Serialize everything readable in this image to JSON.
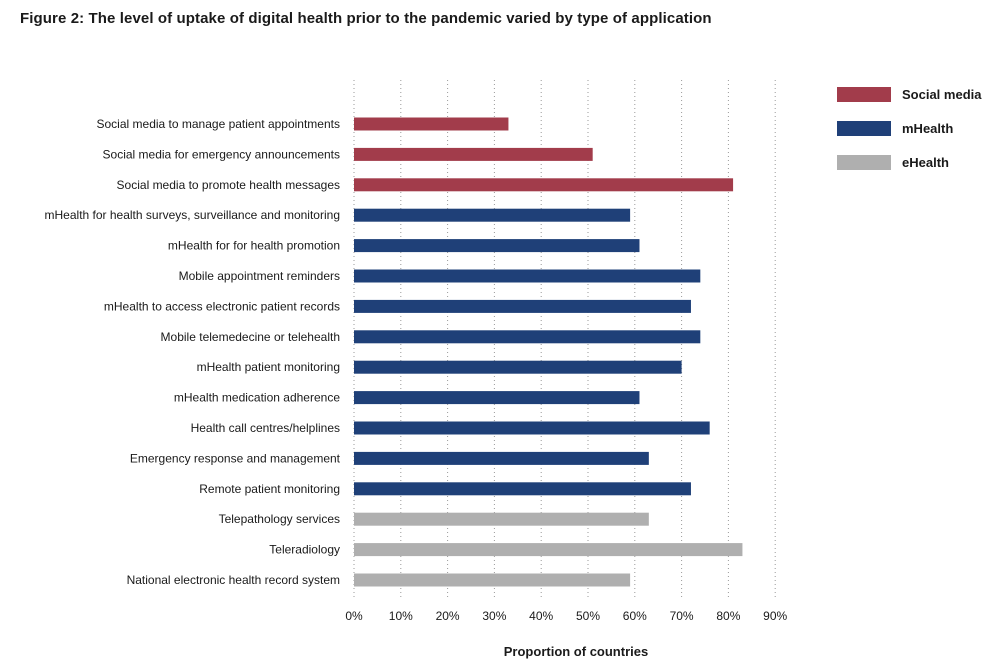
{
  "title": "Figure 2: The level of uptake of digital health prior to the pandemic varied by type of application",
  "chart_data": {
    "type": "bar",
    "orientation": "horizontal",
    "categories": [
      "Social media to manage patient appointments",
      "Social media for emergency announcements",
      "Social media to promote health messages",
      "mHealth for health surveys, surveillance and monitoring",
      "mHealth for for health promotion",
      "Mobile appointment reminders",
      "mHealth to access electronic patient records",
      "Mobile telemedecine or telehealth",
      "mHealth patient monitoring",
      "mHealth medication adherence",
      "Health call centres/helplines",
      "Emergency response and management",
      "Remote patient monitoring",
      "Telepathology services",
      "Teleradiology",
      "National electronic health record system"
    ],
    "values": [
      33,
      51,
      81,
      59,
      61,
      74,
      72,
      74,
      70,
      61,
      76,
      63,
      72,
      63,
      83,
      59
    ],
    "groups": [
      "Social media",
      "Social media",
      "Social media",
      "mHealth",
      "mHealth",
      "mHealth",
      "mHealth",
      "mHealth",
      "mHealth",
      "mHealth",
      "mHealth",
      "mHealth",
      "mHealth",
      "eHealth",
      "eHealth",
      "eHealth"
    ],
    "legend": [
      {
        "name": "Social media",
        "color": "#a23c4b"
      },
      {
        "name": "mHealth",
        "color": "#1f4078"
      },
      {
        "name": "eHealth",
        "color": "#afafaf"
      }
    ],
    "xlabel": "Proportion of countries",
    "ylabel": "",
    "xlim": [
      0,
      90
    ],
    "xticks": [
      0,
      10,
      20,
      30,
      40,
      50,
      60,
      70,
      80,
      90
    ],
    "xtick_labels": [
      "0%",
      "10%",
      "20%",
      "30%",
      "40%",
      "50%",
      "60%",
      "70%",
      "80%",
      "90%"
    ],
    "grid": "vertical dotted",
    "legend_position": "top-right"
  }
}
